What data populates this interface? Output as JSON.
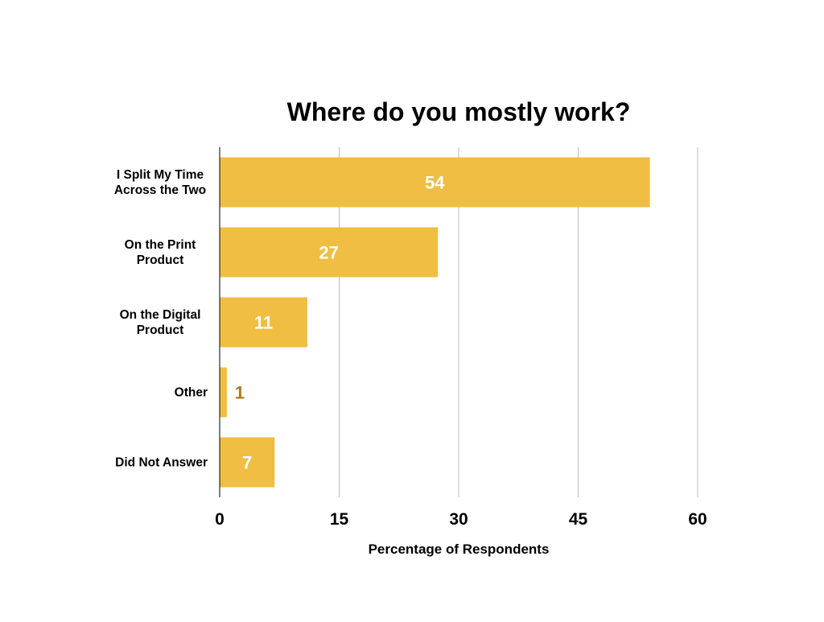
{
  "chart_data": {
    "type": "bar",
    "orientation": "horizontal",
    "title": "Where do you mostly work?",
    "xlabel": "Percentage of Respondents",
    "ylabel": "",
    "xlim": [
      0,
      60
    ],
    "x_ticks": [
      "0",
      "15",
      "30",
      "45",
      "60"
    ],
    "grid": true,
    "categories": [
      [
        "I Split My Time",
        "Across the Two"
      ],
      [
        "On the Print",
        "Product"
      ],
      [
        "On the Digital",
        "Product"
      ],
      [
        "Other"
      ],
      [
        "Did Not Answer"
      ]
    ],
    "values": [
      54,
      27.4,
      11,
      0.9,
      6.9
    ],
    "data_labels": [
      "54",
      "27",
      "11",
      "1",
      "7"
    ],
    "colors": {
      "bar": "#EFBE42",
      "label_inside": "#FFFFFF",
      "label_outside": "#B07A1E",
      "grid": "#BDBDBD",
      "axis": "#000000",
      "text": "#000000"
    }
  }
}
